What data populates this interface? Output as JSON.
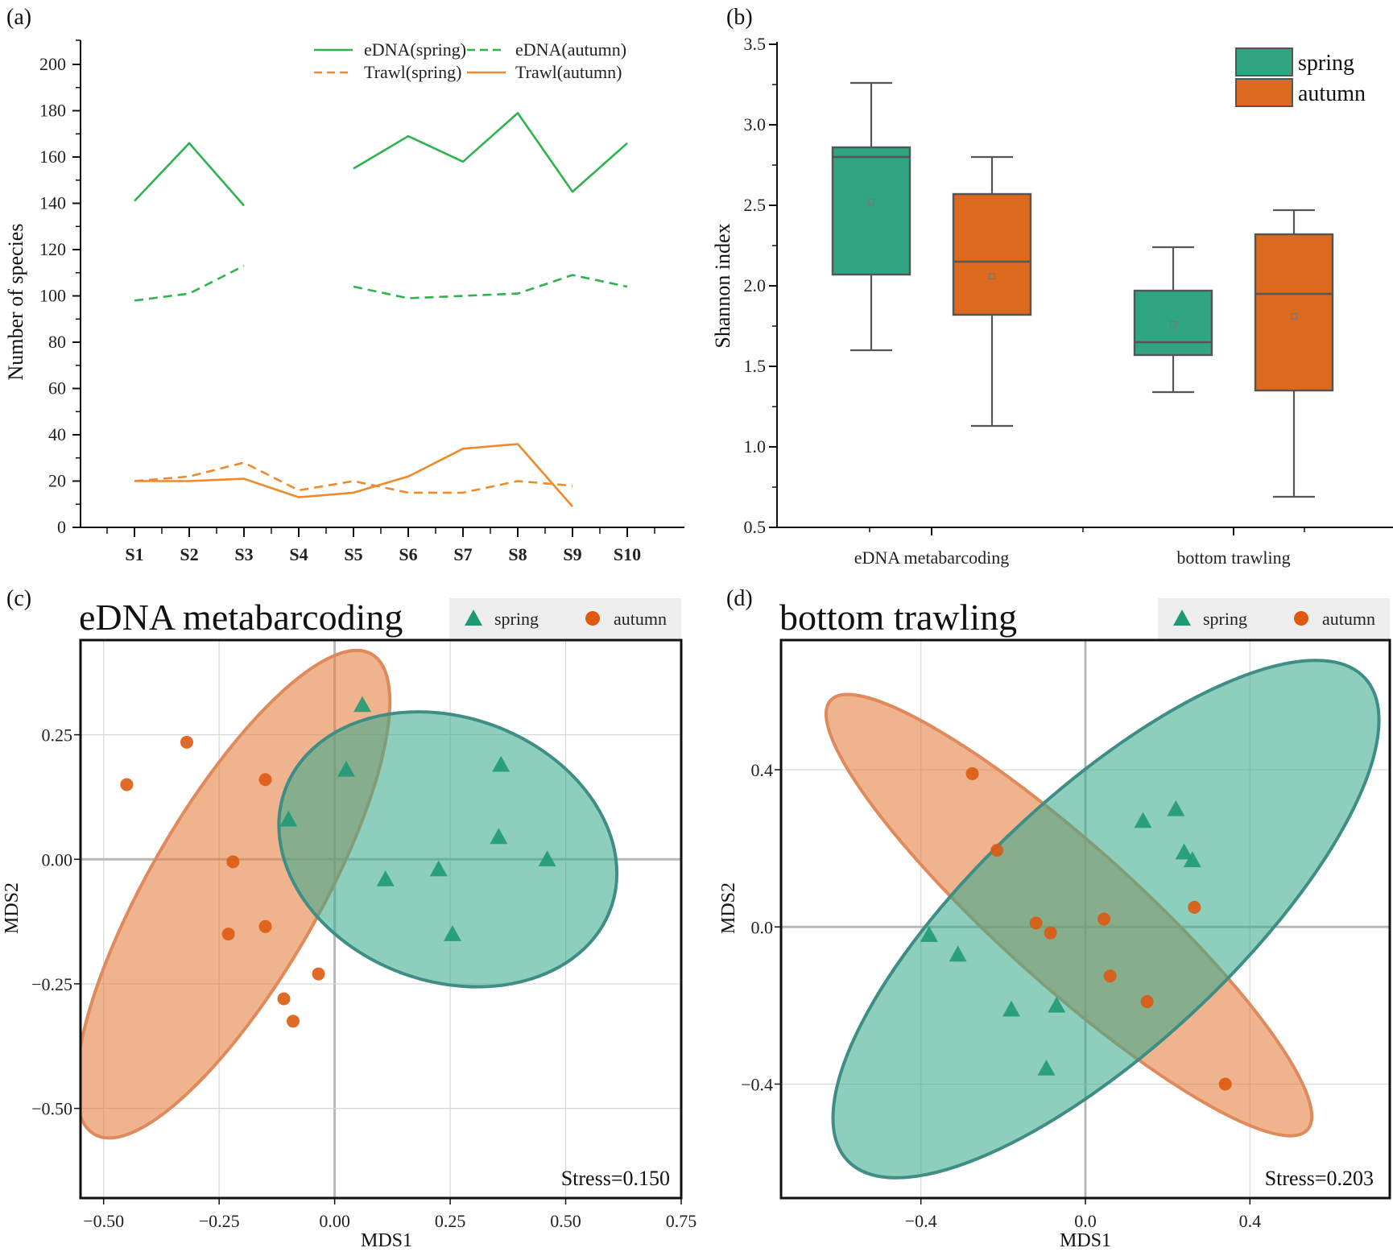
{
  "colors": {
    "edna_green": "#2eb34f",
    "trawl_orange": "#ee8a2c",
    "spring_box": "#2fa581",
    "autumn_box": "#dc6a1e",
    "ellipse_green": "#3aaa8c",
    "ellipse_orange": "#e47c3c",
    "ellipse_overlap": "#8a9e6a"
  },
  "chart_data": [
    {
      "panel": "(a)",
      "type": "line",
      "ylabel": "Number of species",
      "ylim": [
        0,
        200
      ],
      "yticks": [
        "0",
        "20",
        "40",
        "60",
        "80",
        "100",
        "120",
        "140",
        "160",
        "180",
        "200"
      ],
      "categories": [
        "S1",
        "S2",
        "S3",
        "S4",
        "S5",
        "S6",
        "S7",
        "S8",
        "S9",
        "S10"
      ],
      "series": [
        {
          "name": "eDNA(spring)",
          "style": "solid",
          "color": "#2eb34f",
          "values": [
            141,
            166,
            139,
            null,
            155,
            169,
            158,
            179,
            145,
            166
          ]
        },
        {
          "name": "eDNA(autumn)",
          "style": "dashed",
          "color": "#2eb34f",
          "values": [
            98,
            101,
            113,
            null,
            104,
            99,
            100,
            101,
            109,
            104
          ]
        },
        {
          "name": "Trawl(spring)",
          "style": "dashed",
          "color": "#ee8a2c",
          "values": [
            20,
            22,
            28,
            16,
            20,
            15,
            15,
            20,
            18,
            null
          ]
        },
        {
          "name": "Trawl(autumn)",
          "style": "solid",
          "color": "#ee8a2c",
          "values": [
            20,
            20,
            21,
            13,
            15,
            22,
            34,
            36,
            9,
            null
          ]
        }
      ],
      "legend": "top-right",
      "grid": false
    },
    {
      "panel": "(b)",
      "type": "box",
      "ylabel": "Shannon index",
      "ylim": [
        0.5,
        3.5
      ],
      "yticks": [
        "0.5",
        "1.0",
        "1.5",
        "2.0",
        "2.5",
        "3.0",
        "3.5"
      ],
      "categories": [
        "eDNA metabarcoding",
        "bottom trawling"
      ],
      "series": [
        {
          "name": "spring",
          "color": "#2fa581",
          "boxes": [
            {
              "min": 1.6,
              "q1": 2.07,
              "median": 2.8,
              "q3": 2.86,
              "max": 3.26,
              "mean": 2.52
            },
            {
              "min": 1.34,
              "q1": 1.57,
              "median": 1.65,
              "q3": 1.97,
              "max": 2.24,
              "mean": 1.76
            }
          ]
        },
        {
          "name": "autumn",
          "color": "#dc6a1e",
          "boxes": [
            {
              "min": 1.13,
              "q1": 1.82,
              "median": 2.15,
              "q3": 2.57,
              "max": 2.8,
              "mean": 2.06
            },
            {
              "min": 0.69,
              "q1": 1.35,
              "median": 1.95,
              "q3": 2.32,
              "max": 2.47,
              "mean": 1.81
            }
          ]
        }
      ],
      "legend": "top-right",
      "grid": false
    },
    {
      "panel": "(c)",
      "type": "scatter",
      "title": "eDNA metabarcoding",
      "xlabel": "MDS1",
      "ylabel": "MDS2",
      "xlim": [
        -0.55,
        0.75
      ],
      "ylim": [
        -0.68,
        0.44
      ],
      "xticks": [
        -0.5,
        -0.25,
        0.0,
        0.25,
        0.5,
        0.75
      ],
      "xtick_labels": [
        "−0.50",
        "−0.25",
        "0.00",
        "0.25",
        "0.50",
        "0.75"
      ],
      "yticks": [
        -0.5,
        -0.25,
        0.0,
        0.25
      ],
      "ytick_labels": [
        "−0.50",
        "−0.25",
        "0.00",
        "0.25"
      ],
      "annotation": "Stress=0.150",
      "legend": "top-right",
      "grid": true,
      "series": [
        {
          "name": "spring",
          "marker": "triangle",
          "color": "#1f9a74",
          "points": [
            [
              0.06,
              0.31
            ],
            [
              0.025,
              0.18
            ],
            [
              0.36,
              0.19
            ],
            [
              -0.1,
              0.08
            ],
            [
              0.355,
              0.045
            ],
            [
              0.46,
              0.0
            ],
            [
              0.11,
              -0.04
            ],
            [
              0.225,
              -0.02
            ],
            [
              0.255,
              -0.15
            ]
          ]
        },
        {
          "name": "autumn",
          "marker": "circle",
          "color": "#dd5a10",
          "points": [
            [
              -0.45,
              0.15
            ],
            [
              -0.32,
              0.235
            ],
            [
              -0.15,
              0.16
            ],
            [
              -0.22,
              -0.005
            ],
            [
              -0.23,
              -0.15
            ],
            [
              -0.15,
              -0.135
            ],
            [
              -0.035,
              -0.23
            ],
            [
              -0.11,
              -0.28
            ],
            [
              -0.09,
              -0.325
            ]
          ]
        }
      ],
      "ellipses": [
        {
          "group": "autumn",
          "cx": -0.22,
          "cy": -0.07,
          "rx": 0.6,
          "ry": 0.17,
          "angle_deg": 60
        },
        {
          "group": "spring",
          "cx": 0.245,
          "cy": 0.02,
          "rx": 0.375,
          "ry": 0.265,
          "angle_deg": -20
        }
      ]
    },
    {
      "panel": "(d)",
      "type": "scatter",
      "title": "bottom trawling",
      "xlabel": "MDS1",
      "ylabel": "MDS2",
      "xlim": [
        -0.74,
        0.74
      ],
      "ylim": [
        -0.69,
        0.73
      ],
      "xticks": [
        -0.4,
        0.0,
        0.4
      ],
      "xtick_labels": [
        "−0.4",
        "0.0",
        "0.4"
      ],
      "yticks": [
        -0.4,
        0.0,
        0.4
      ],
      "ytick_labels": [
        "−0.4",
        "0.0",
        "0.4"
      ],
      "annotation": "Stress=0.203",
      "legend": "top-right",
      "grid": true,
      "series": [
        {
          "name": "spring",
          "marker": "triangle",
          "color": "#1f9a74",
          "points": [
            [
              0.14,
              0.27
            ],
            [
              0.22,
              0.3
            ],
            [
              0.24,
              0.19
            ],
            [
              0.26,
              0.17
            ],
            [
              -0.38,
              -0.02
            ],
            [
              -0.31,
              -0.07
            ],
            [
              -0.18,
              -0.21
            ],
            [
              -0.07,
              -0.2
            ],
            [
              -0.095,
              -0.36
            ]
          ]
        },
        {
          "name": "autumn",
          "marker": "circle",
          "color": "#dd5a10",
          "points": [
            [
              -0.275,
              0.39
            ],
            [
              -0.215,
              0.195
            ],
            [
              -0.12,
              0.01
            ],
            [
              -0.085,
              -0.015
            ],
            [
              0.045,
              0.02
            ],
            [
              0.06,
              -0.125
            ],
            [
              0.265,
              0.05
            ],
            [
              0.15,
              -0.19
            ],
            [
              0.34,
              -0.4
            ]
          ]
        }
      ],
      "ellipses": [
        {
          "group": "autumn",
          "cx": -0.04,
          "cy": 0.03,
          "rx": 0.78,
          "ry": 0.175,
          "angle_deg": -42
        },
        {
          "group": "spring",
          "cx": 0.05,
          "cy": 0.02,
          "rx": 0.86,
          "ry": 0.325,
          "angle_deg": 43
        }
      ]
    }
  ]
}
